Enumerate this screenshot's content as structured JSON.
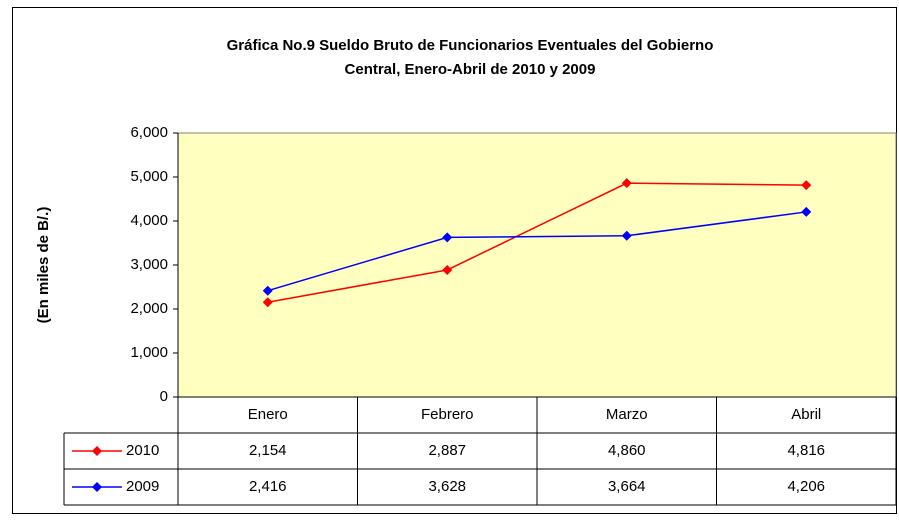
{
  "chart_data": {
    "type": "line",
    "title": [
      "Gráfica No.9 Sueldo Bruto de Funcionarios Eventuales del Gobierno",
      "Central, Enero-Abril de 2010 y 2009"
    ],
    "y_label": "(En miles de B/.)",
    "categories": [
      "Enero",
      "Febrero",
      "Marzo",
      "Abril"
    ],
    "series": [
      {
        "name": "2010",
        "color": "#ff0000",
        "values": [
          2154,
          2887,
          4860,
          4816
        ],
        "value_labels": [
          "2,154",
          "2,887",
          "4,860",
          "4,816"
        ]
      },
      {
        "name": "2009",
        "color": "#0000ff",
        "values": [
          2416,
          3628,
          3664,
          4206
        ],
        "value_labels": [
          "2,416",
          "3,628",
          "3,664",
          "4,206"
        ]
      }
    ],
    "ylim": [
      0,
      6000
    ],
    "yticks": [
      0,
      {
        "value": 1000,
        "label": "1,000"
      },
      {
        "value": 2000,
        "label": "2,000"
      },
      {
        "value": 3000,
        "label": "3,000"
      },
      {
        "value": 4000,
        "label": "4,000"
      },
      {
        "value": 5000,
        "label": "5,000"
      },
      {
        "value": 6000,
        "label": "6,000"
      }
    ],
    "grid": false,
    "plot_background": "#ffffc0"
  }
}
